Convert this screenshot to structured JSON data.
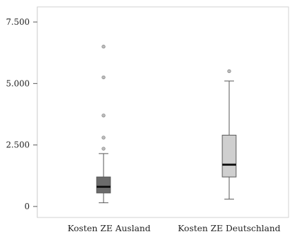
{
  "chart_data": {
    "type": "boxplot",
    "title": "",
    "xlabel": "",
    "ylabel": "",
    "ylim": [
      0,
      7500
    ],
    "yticks": [
      0,
      2500,
      5000,
      7500
    ],
    "ytick_labels": [
      "0",
      "2.500",
      "5.000",
      "7.500"
    ],
    "grid": false,
    "legend": "none",
    "categories": [
      "Kosten ZE Ausland",
      "Kosten ZE Deutschland"
    ],
    "boxes": [
      {
        "category": "Kosten ZE Ausland",
        "color": "#6b6b6b",
        "whisker_low": 150,
        "q1": 550,
        "median": 800,
        "q3": 1200,
        "whisker_high": 2150,
        "outliers": [
          2350,
          2800,
          3700,
          5250,
          6500
        ]
      },
      {
        "category": "Kosten ZE Deutschland",
        "color": "#cfcfcf",
        "whisker_low": 300,
        "q1": 1200,
        "median": 1700,
        "q3": 2900,
        "whisker_high": 5100,
        "outliers": [
          5500
        ]
      }
    ]
  }
}
